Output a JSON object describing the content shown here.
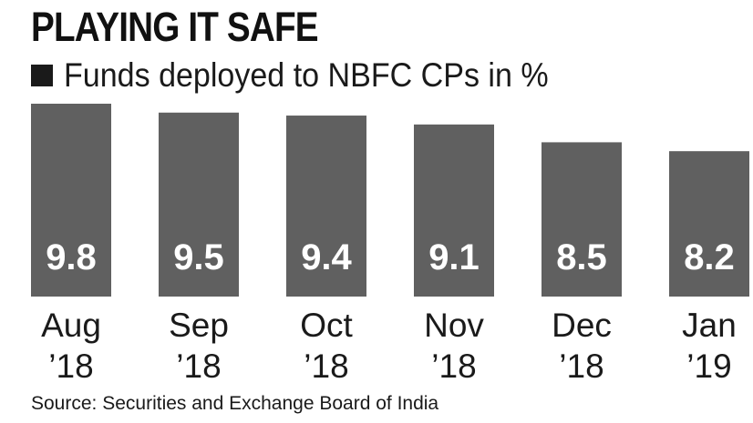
{
  "chart_data": {
    "type": "bar",
    "title": "PLAYING IT SAFE",
    "legend": "Funds deployed to NBFC CPs in %",
    "series": [
      {
        "name": "Funds deployed to NBFC CPs in %",
        "values": [
          9.8,
          9.5,
          9.4,
          9.1,
          8.5,
          8.2
        ]
      }
    ],
    "categories": [
      [
        "Aug",
        "’18"
      ],
      [
        "Sep",
        "’18"
      ],
      [
        "Oct",
        "’18"
      ],
      [
        "Nov",
        "’18"
      ],
      [
        "Dec",
        "’18"
      ],
      [
        "Jan",
        "’19"
      ]
    ],
    "data_labels": [
      "9.8",
      "9.5",
      "9.4",
      "9.1",
      "8.5",
      "8.2"
    ],
    "ylim": [
      3.3,
      9.8
    ],
    "xlabel": "",
    "ylabel": "",
    "grid": false,
    "legend_position": "top-left",
    "source": "Source: Securities and Exchange Board of India"
  },
  "colors": {
    "bar": "#606060",
    "bar_label": "#ffffff",
    "text": "#1a1a1a",
    "legend_swatch": "#1a1a1a"
  }
}
